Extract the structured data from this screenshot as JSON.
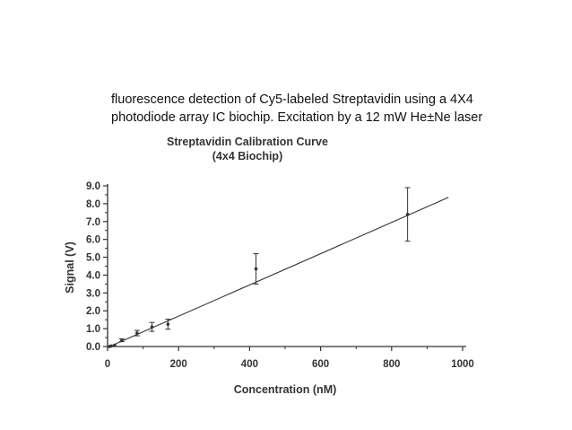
{
  "caption": {
    "line1": "fluorescence detection of Cy5-labeled Streptavidin using a 4X4",
    "line2": "photodiode array IC biochip. Excitation by a 12 mW He±Ne laser"
  },
  "chart_data": {
    "type": "scatter",
    "title_lines": [
      "Streptavidin Calibration Curve",
      "(4x4 Biochip)"
    ],
    "xlabel": "Concentration (nM)",
    "ylabel": "Signal (V)",
    "xlim": [
      0,
      1000
    ],
    "ylim": [
      0,
      9
    ],
    "x_ticks": [
      0,
      200,
      400,
      600,
      800,
      1000
    ],
    "x_tick_labels": [
      "0",
      "200",
      "400",
      "600",
      "800",
      "1000"
    ],
    "y_ticks": [
      0,
      1,
      2,
      3,
      4,
      5,
      6,
      7,
      8,
      9
    ],
    "y_tick_labels": [
      "0.0",
      "1.0",
      "2.0",
      "3.0",
      "4.0",
      "5.0",
      "6.0",
      "7.0",
      "8.0",
      "9.0"
    ],
    "grid": false,
    "colors": {
      "ink": "#333333"
    },
    "points": [
      {
        "x": 5,
        "y": 0.0,
        "err": 0.0
      },
      {
        "x": 10,
        "y": 0.03,
        "err": 0.0
      },
      {
        "x": 20,
        "y": 0.07,
        "err": 0.0
      },
      {
        "x": 40,
        "y": 0.35,
        "err": 0.08
      },
      {
        "x": 83,
        "y": 0.75,
        "err": 0.15
      },
      {
        "x": 125,
        "y": 1.1,
        "err": 0.25
      },
      {
        "x": 170,
        "y": 1.25,
        "err": 0.28
      },
      {
        "x": 418,
        "y": 4.35,
        "err": 0.85
      },
      {
        "x": 845,
        "y": 7.4,
        "err": 1.5
      }
    ],
    "fit_line": {
      "x": [
        0,
        960
      ],
      "y": [
        -0.05,
        8.35
      ]
    }
  }
}
